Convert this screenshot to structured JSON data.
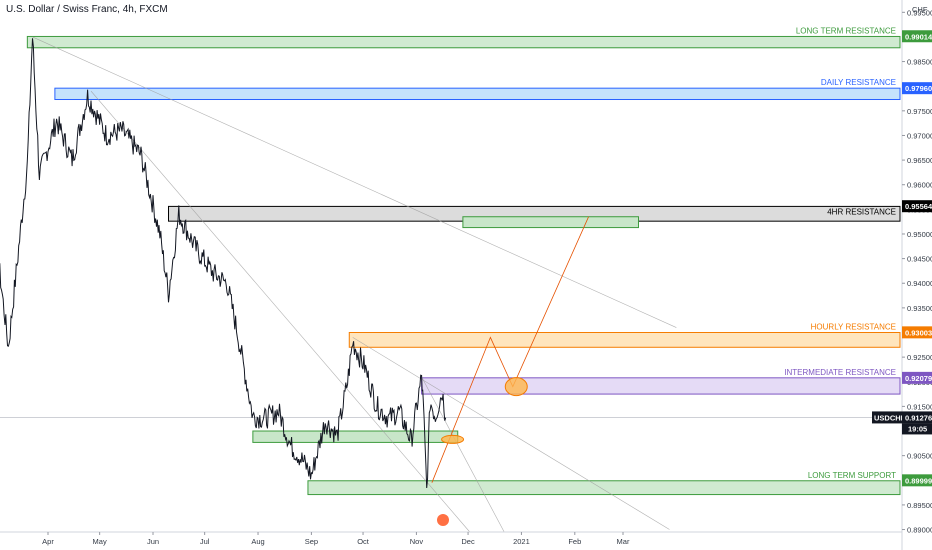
{
  "chart_data": {
    "type": "line",
    "title": "U.S. Dollar / Swiss Franc, 4h, FXCM",
    "currency_label": "CHF",
    "symbol": "USDCHF",
    "last_price": "0.91276",
    "countdown": "19:05",
    "ylim": [
      0.8895,
      0.9975
    ],
    "y_ticks": [
      "0.99500",
      "0.99000",
      "0.98500",
      "0.98000",
      "0.97500",
      "0.97000",
      "0.96500",
      "0.96000",
      "0.95500",
      "0.95000",
      "0.94500",
      "0.94000",
      "0.93500",
      "0.93000",
      "0.92500",
      "0.92000",
      "0.91500",
      "0.91000",
      "0.90500",
      "0.90000",
      "0.89500",
      "0.89000"
    ],
    "x_ticks": [
      "Apr",
      "May",
      "Jun",
      "Jul",
      "Aug",
      "Sep",
      "Oct",
      "Nov",
      "Dec",
      "2021",
      "Feb",
      "Mar"
    ],
    "zones": [
      {
        "label": "LONG TERM RESISTANCE",
        "price": "0.99014",
        "low": 0.9878,
        "high": 0.9901,
        "start": "Mar 2020",
        "color": "#3d9b3d",
        "fill": "#c8e6c9"
      },
      {
        "label": "DAILY RESISTANCE",
        "price": "0.97960",
        "low": 0.9773,
        "high": 0.9796,
        "start": "Apr 2020",
        "color": "#2962ff",
        "fill": "#bbdefb"
      },
      {
        "label": "4HR RESISTANCE",
        "price": "0.95564",
        "low": 0.9526,
        "high": 0.9556,
        "start": "Jun 2020",
        "color": "#000000",
        "fill": "#d6d6d6"
      },
      {
        "label": "HOURLY RESISTANCE",
        "price": "0.93003",
        "low": 0.927,
        "high": 0.93,
        "start": "Sep 2020",
        "color": "#f57c00",
        "fill": "#ffe0b2"
      },
      {
        "label": "INTERMEDIATE RESISTANCE",
        "price": "0.92079",
        "low": 0.9175,
        "high": 0.9208,
        "start": "Nov 2020",
        "color": "#7e57c2",
        "fill": "#e1d5f5"
      },
      {
        "label": "LONG TERM SUPPORT",
        "price": "0.89999",
        "low": 0.8971,
        "high": 0.8999,
        "start": "Sep 2020",
        "color": "#3d9b3d",
        "fill": "#c8e6c9"
      }
    ],
    "series": [
      {
        "x": [
          "2020-02-20",
          "2020-03-01",
          "2020-03-09",
          "2020-03-20",
          "2020-03-23",
          "2020-03-27",
          "2020-04-06",
          "2020-04-15",
          "2020-04-24",
          "2020-05-05",
          "2020-05-14",
          "2020-05-25",
          "2020-06-05",
          "2020-06-10",
          "2020-06-16",
          "2020-06-26",
          "2020-07-06",
          "2020-07-14",
          "2020-07-20",
          "2020-07-29",
          "2020-08-05",
          "2020-08-13",
          "2020-08-20",
          "2020-08-27",
          "2020-09-01",
          "2020-09-09",
          "2020-09-16",
          "2020-09-22",
          "2020-09-25",
          "2020-10-02",
          "2020-10-09",
          "2020-10-16",
          "2020-10-22",
          "2020-10-29",
          "2020-11-04",
          "2020-11-05",
          "2020-11-07",
          "2020-11-09",
          "2020-11-12",
          "2020-11-16",
          "2020-11-18"
        ],
        "y": [
          0.965,
          0.951,
          0.927,
          0.964,
          0.99,
          0.962,
          0.973,
          0.965,
          0.978,
          0.97,
          0.971,
          0.966,
          0.95,
          0.938,
          0.954,
          0.947,
          0.942,
          0.94,
          0.93,
          0.913,
          0.9125,
          0.914,
          0.907,
          0.904,
          0.901,
          0.912,
          0.909,
          0.92,
          0.928,
          0.923,
          0.915,
          0.9125,
          0.914,
          0.908,
          0.921,
          0.915,
          0.898,
          0.916,
          0.913,
          0.918,
          0.9127
        ]
      }
    ],
    "drawings": {
      "trendlines": [
        {
          "from": [
            "2020-03-23",
            0.99
          ],
          "to": [
            "2021-04-01",
            0.931
          ]
        },
        {
          "from": [
            "2020-04-26",
            0.979
          ],
          "to": [
            "2020-12-02",
            0.8895
          ]
        },
        {
          "from": [
            "2020-09-25",
            0.929
          ],
          "to": [
            "2021-03-28",
            0.89
          ]
        },
        {
          "from": [
            "2020-11-04",
            0.921
          ],
          "to": [
            "2020-12-22",
            0.8895
          ]
        }
      ],
      "projection_zone": {
        "low": 0.9513,
        "high": 0.9535,
        "from": "2020-11-28",
        "to": "2021-03-10"
      },
      "projection_path": [
        [
          "2020-11-10",
          0.8995
        ],
        [
          "2020-12-14",
          0.929
        ],
        [
          "2020-12-27",
          0.919
        ],
        [
          "2021-02-09",
          0.9535
        ]
      ],
      "ellipses": [
        {
          "x": "2020-11-22",
          "y": 0.9083,
          "color": "#f57c00"
        },
        {
          "x": "2020-12-29",
          "y": 0.919,
          "color": "#f57c00"
        }
      ]
    }
  }
}
